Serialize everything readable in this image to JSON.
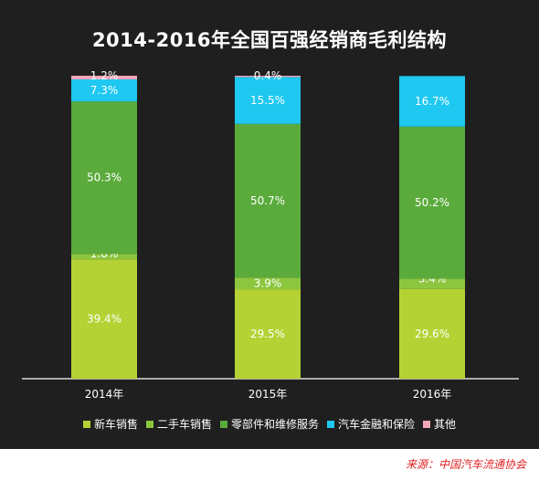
{
  "chart_data": {
    "type": "bar",
    "stacked": true,
    "title": "2014-2016年全国百强经销商毛利结构",
    "categories": [
      "2014年",
      "2015年",
      "2016年"
    ],
    "series": [
      {
        "name": "新车销售",
        "color": "#b5d234",
        "values": [
          39.4,
          29.5,
          29.6
        ],
        "labels": [
          "39.4%",
          "29.5%",
          "29.6%"
        ]
      },
      {
        "name": "二手车销售",
        "color": "#8cc63f",
        "values": [
          1.8,
          3.9,
          3.4
        ],
        "labels": [
          "1.8%",
          "3.9%",
          "3.4%"
        ]
      },
      {
        "name": "零部件和维修服务",
        "color": "#5aab3c",
        "values": [
          50.3,
          50.7,
          50.2
        ],
        "labels": [
          "50.3%",
          "50.7%",
          "50.2%"
        ]
      },
      {
        "name": "汽车金融和保险",
        "color": "#1ec8f0",
        "values": [
          7.3,
          15.5,
          16.7
        ],
        "labels": [
          "7.3%",
          "15.5%",
          "16.7%"
        ]
      },
      {
        "name": "其他",
        "color": "#f4a6b8",
        "values": [
          1.2,
          0.4,
          0.0
        ],
        "labels": [
          "1.2%",
          "0.4%",
          ""
        ]
      }
    ],
    "ylim": [
      0,
      100
    ],
    "legend_position": "bottom",
    "grid": false
  },
  "source": "来源：中国汽车流通协会"
}
